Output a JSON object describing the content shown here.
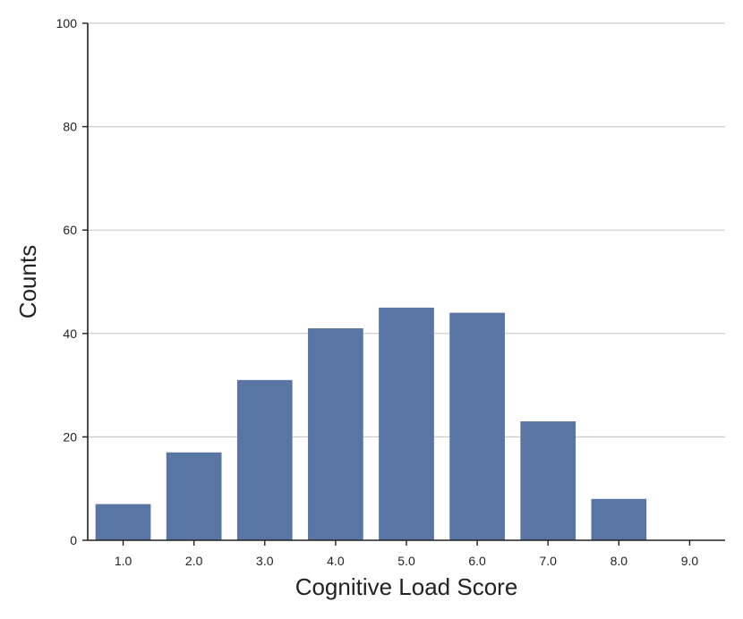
{
  "chart_data": {
    "type": "bar",
    "title": "",
    "xlabel": "Cognitive Load Score",
    "ylabel": "Counts",
    "categories": [
      "1.0",
      "2.0",
      "3.0",
      "4.0",
      "5.0",
      "6.0",
      "7.0",
      "8.0",
      "9.0"
    ],
    "values": [
      7,
      17,
      31,
      41,
      45,
      44,
      23,
      8,
      0
    ],
    "ylim": [
      0,
      100
    ],
    "yticks": [
      0,
      20,
      40,
      60,
      80,
      100
    ],
    "grid": "horizontal",
    "bar_color": "#5975a4",
    "grid_color": "#cccccc",
    "axis_color": "#222222"
  }
}
